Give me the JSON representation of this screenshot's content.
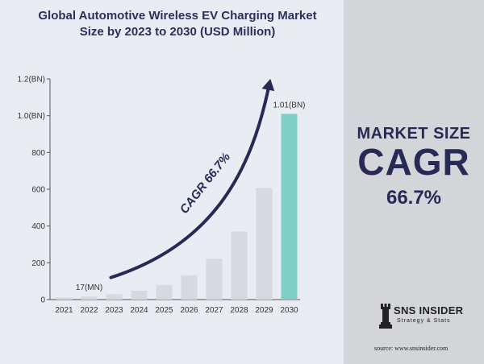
{
  "title": {
    "line1": "Global Automotive Wireless EV Charging Market",
    "line2": "Size by 2023 to 2030 (USD Million)"
  },
  "side": {
    "label1": "MARKET SIZE",
    "label2": "CAGR",
    "label3": "66.7%"
  },
  "brand": {
    "name": "SNS INSIDER",
    "tagline": "Strategy & Stats",
    "icon": "chess-rook-icon"
  },
  "source": "source: www.snsinsider.com",
  "colors": {
    "bar": "#d7d9de",
    "highlight_bar": "#7ecfc4",
    "arrow": "#262a55",
    "text_dark": "#2b2f5c",
    "right_panel": "#d3d5d9"
  },
  "chart_data": {
    "type": "bar",
    "title": "Global Automotive Wireless EV Charging Market Size by 2023 to 2030 (USD Million)",
    "categories": [
      "2021",
      "2022",
      "2023",
      "2024",
      "2025",
      "2026",
      "2027",
      "2028",
      "2029",
      "2030"
    ],
    "values": [
      12,
      17,
      29,
      48,
      80,
      133,
      222,
      370,
      607,
      1010
    ],
    "ylim": [
      0,
      1200
    ],
    "yticks": [
      {
        "value": 0,
        "label": "0"
      },
      {
        "value": 200,
        "label": "200"
      },
      {
        "value": 400,
        "label": "400"
      },
      {
        "value": 600,
        "label": "600"
      },
      {
        "value": 800,
        "label": "800"
      },
      {
        "value": 1000,
        "label": "1.0(BN)"
      },
      {
        "value": 1200,
        "label": "1.2(BN)"
      }
    ],
    "data_labels": [
      {
        "category": "2022",
        "text": "17(MN)"
      },
      {
        "category": "2030",
        "text": "1.01(BN)"
      }
    ],
    "highlight_category": "2030",
    "annotation": "CAGR 66.7%",
    "grid": false
  }
}
